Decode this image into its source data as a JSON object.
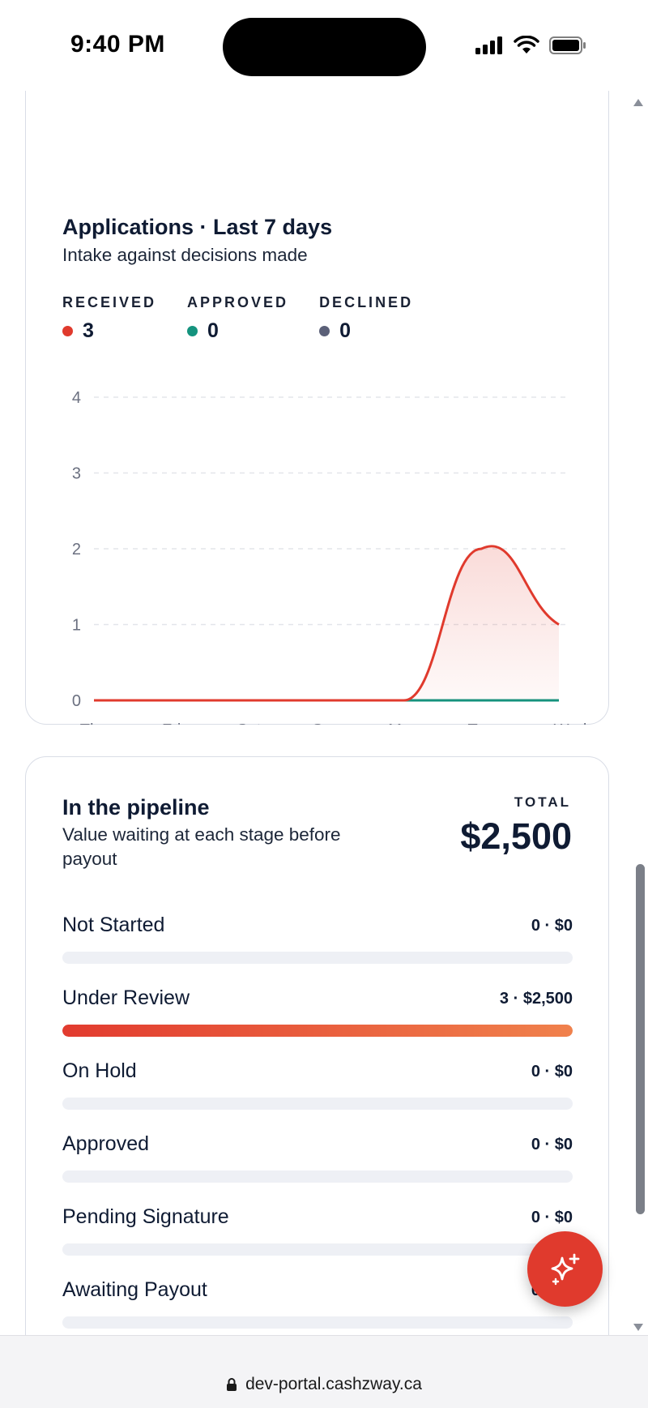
{
  "status_bar": {
    "time": "9:40 PM"
  },
  "applications_card": {
    "title": "Applications · Last 7 days",
    "subtitle": "Intake against decisions made",
    "legend": [
      {
        "label": "RECEIVED",
        "value": "3",
        "color": "#e03a2d"
      },
      {
        "label": "APPROVED",
        "value": "0",
        "color": "#14937e"
      },
      {
        "label": "DECLINED",
        "value": "0",
        "color": "#5b6078"
      }
    ]
  },
  "chart_data": {
    "type": "area",
    "categories": [
      "Thu",
      "Fri",
      "Sat",
      "Sun",
      "Mon",
      "Tue",
      "Wed"
    ],
    "y_ticks": [
      "0",
      "1",
      "2",
      "3",
      "4"
    ],
    "ylim": [
      0,
      4
    ],
    "grid": true,
    "series": [
      {
        "name": "RECEIVED",
        "values": [
          0,
          0,
          0,
          0,
          0,
          2,
          1
        ],
        "color": "#e03a2d"
      },
      {
        "name": "APPROVED",
        "values": [
          0,
          0,
          0,
          0,
          0,
          0,
          0
        ],
        "color": "#14937e"
      },
      {
        "name": "DECLINED",
        "values": [
          0,
          0,
          0,
          0,
          0,
          0,
          0
        ],
        "color": "#5b6078"
      }
    ]
  },
  "pipeline_card": {
    "title": "In the pipeline",
    "subtitle_line1": "Value waiting at each stage before",
    "subtitle_line2": "payout",
    "total_label": "TOTAL",
    "total_value": "$2,500",
    "stages": [
      {
        "name": "Not Started",
        "value": "0 · $0",
        "fill": 0
      },
      {
        "name": "Under Review",
        "value": "3 · $2,500",
        "fill": 1
      },
      {
        "name": "On Hold",
        "value": "0 · $0",
        "fill": 0
      },
      {
        "name": "Approved",
        "value": "0 · $0",
        "fill": 0
      },
      {
        "name": "Pending Signature",
        "value": "0 · $0",
        "fill": 0
      },
      {
        "name": "Awaiting Payout",
        "value": "0 · $0",
        "fill": 0
      }
    ]
  },
  "url_bar": {
    "url": "dev-portal.cashzway.ca"
  }
}
